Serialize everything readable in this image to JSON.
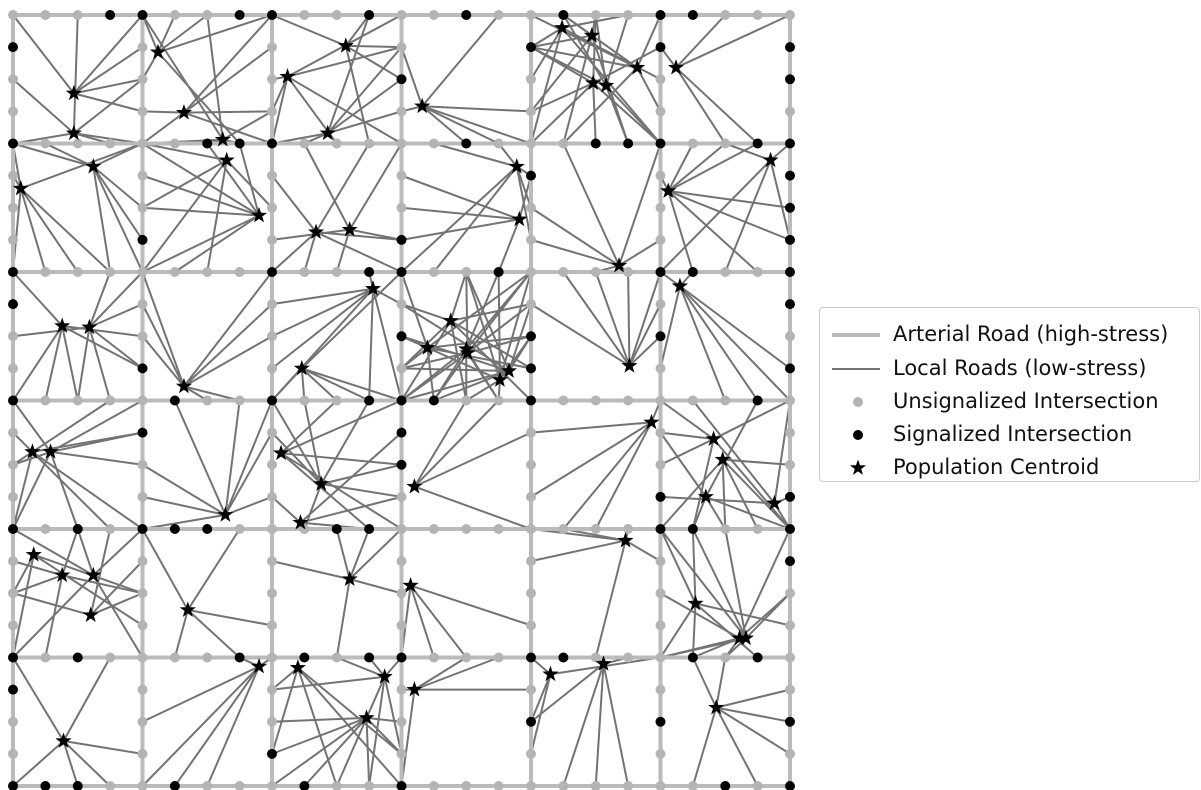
{
  "colors": {
    "arterial": "#bbbbbb",
    "local": "#737373",
    "unsignalized": "#b4b4b4",
    "signalized": "#000000",
    "centroid": "#000000"
  },
  "legend": {
    "arterial_label": "Arterial Road (high-stress)",
    "local_label": "Local Roads (low-stress)",
    "unsignalized_label": "Unsignalized Intersection",
    "signalized_label": "Signalized Intersection",
    "centroid_label": "Population Centroid"
  },
  "network": {
    "blocks_per_side": 6,
    "subdivisions_per_block": 4,
    "centroids_by_block": [
      [
        [
          0.47,
          0.61
        ],
        [
          0.47,
          0.92
        ]
      ],
      [
        [
          0.12,
          0.29
        ],
        [
          0.32,
          0.76
        ],
        [
          0.62,
          0.97
        ]
      ],
      [
        [
          0.12,
          0.48
        ],
        [
          0.57,
          0.24
        ],
        [
          0.43,
          0.92
        ]
      ],
      [
        [
          0.16,
          0.71
        ]
      ],
      [
        [
          0.24,
          0.1
        ],
        [
          0.47,
          0.16
        ],
        [
          0.48,
          0.53
        ],
        [
          0.58,
          0.55
        ],
        [
          0.82,
          0.41
        ]
      ],
      [
        [
          0.12,
          0.41
        ]
      ],
      [
        [
          0.06,
          0.35
        ],
        [
          0.62,
          0.18
        ]
      ],
      [
        [
          0.65,
          0.13
        ],
        [
          0.9,
          0.56
        ]
      ],
      [
        [
          0.34,
          0.69
        ],
        [
          0.6,
          0.67
        ]
      ],
      [
        [
          0.89,
          0.18
        ],
        [
          0.91,
          0.59
        ]
      ],
      [
        [
          0.68,
          0.95
        ]
      ],
      [
        [
          0.06,
          0.37
        ],
        [
          0.85,
          0.13
        ]
      ],
      [
        [
          0.38,
          0.42
        ],
        [
          0.59,
          0.43
        ]
      ],
      [
        [
          0.32,
          0.89
        ]
      ],
      [
        [
          0.23,
          0.75
        ],
        [
          0.78,
          0.13
        ]
      ],
      [
        [
          0.2,
          0.59
        ],
        [
          0.38,
          0.38
        ],
        [
          0.5,
          0.6
        ],
        [
          0.51,
          0.63
        ],
        [
          0.76,
          0.84
        ],
        [
          0.83,
          0.77
        ]
      ],
      [
        [
          0.76,
          0.73
        ]
      ],
      [
        [
          0.15,
          0.11
        ]
      ],
      [
        [
          0.15,
          0.4
        ],
        [
          0.29,
          0.4
        ]
      ],
      [
        [
          0.64,
          0.89
        ]
      ],
      [
        [
          0.07,
          0.41
        ],
        [
          0.38,
          0.65
        ],
        [
          0.22,
          0.95
        ]
      ],
      [
        [
          0.1,
          0.67
        ]
      ],
      [
        [
          0.93,
          0.17
        ]
      ],
      [
        [
          0.41,
          0.3
        ],
        [
          0.48,
          0.46
        ],
        [
          0.35,
          0.75
        ],
        [
          0.88,
          0.8
        ]
      ],
      [
        [
          0.16,
          0.2
        ],
        [
          0.38,
          0.36
        ],
        [
          0.62,
          0.36
        ],
        [
          0.6,
          0.67
        ]
      ],
      [
        [
          0.35,
          0.63
        ]
      ],
      [
        [
          0.6,
          0.39
        ]
      ],
      [
        [
          0.07,
          0.44
        ]
      ],
      [
        [
          0.73,
          0.09
        ]
      ],
      [
        [
          0.27,
          0.58
        ],
        [
          0.61,
          0.85
        ],
        [
          0.66,
          0.85
        ]
      ],
      [
        [
          0.39,
          0.65
        ]
      ],
      [
        [
          0.9,
          0.07
        ]
      ],
      [
        [
          0.2,
          0.08
        ],
        [
          0.87,
          0.15
        ],
        [
          0.73,
          0.47
        ]
      ],
      [
        [
          0.1,
          0.25
        ]
      ],
      [
        [
          0.15,
          0.13
        ],
        [
          0.56,
          0.05
        ]
      ],
      [
        [
          0.43,
          0.39
        ]
      ]
    ]
  }
}
